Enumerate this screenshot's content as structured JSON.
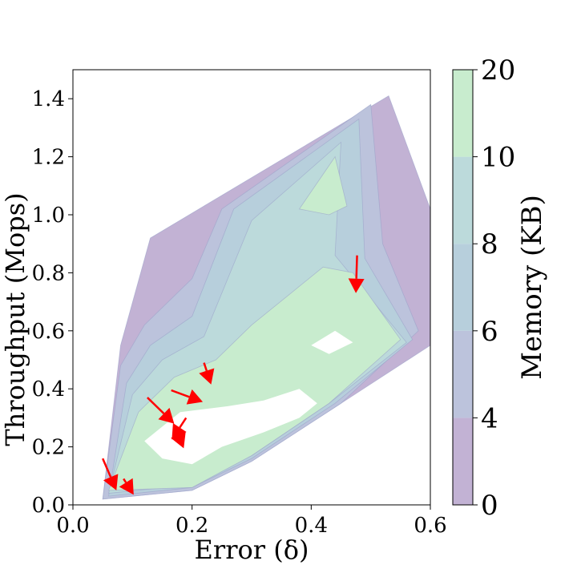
{
  "chart_data": {
    "type": "heatmap",
    "subtype": "filled-contour",
    "title": "",
    "xlabel": "Error (δ)",
    "ylabel": "Throughput (Mops)",
    "xlim": [
      0.0,
      0.6
    ],
    "ylim": [
      0.0,
      1.5
    ],
    "x_ticks": [
      0.0,
      0.2,
      0.4,
      0.6
    ],
    "x_tick_labels": [
      "0.0",
      "0.2",
      "0.4",
      "0.6"
    ],
    "y_ticks": [
      0.0,
      0.2,
      0.4,
      0.6,
      0.8,
      1.0,
      1.2,
      1.4
    ],
    "y_tick_labels": [
      "0.0",
      "0.2",
      "0.4",
      "0.6",
      "0.8",
      "1.0",
      "1.2",
      "1.4"
    ],
    "grid": false,
    "colorbar": {
      "label": "Memory (KB)",
      "levels": [
        0,
        4,
        6,
        8,
        10,
        20
      ],
      "tick_labels": [
        "0",
        "4",
        "6",
        "8",
        "10",
        "20"
      ],
      "colors": [
        "#c2b2d4",
        "#bcc3dc",
        "#b7cfdc",
        "#bcdadb",
        "#c8ecce"
      ]
    },
    "regions": [
      {
        "name": "level-0-4",
        "level_index": 0,
        "polygon": [
          [
            0.05,
            0.02
          ],
          [
            0.08,
            0.55
          ],
          [
            0.13,
            0.92
          ],
          [
            0.53,
            1.41
          ],
          [
            0.6,
            1.02
          ],
          [
            0.6,
            0.55
          ],
          [
            0.45,
            0.35
          ],
          [
            0.3,
            0.15
          ],
          [
            0.2,
            0.05
          ]
        ]
      },
      {
        "name": "level-4-6",
        "level_index": 1,
        "polygon": [
          [
            0.05,
            0.02
          ],
          [
            0.08,
            0.48
          ],
          [
            0.12,
            0.62
          ],
          [
            0.2,
            0.78
          ],
          [
            0.25,
            1.02
          ],
          [
            0.5,
            1.38
          ],
          [
            0.52,
            0.9
          ],
          [
            0.58,
            0.6
          ],
          [
            0.45,
            0.35
          ],
          [
            0.3,
            0.15
          ],
          [
            0.2,
            0.05
          ]
        ]
      },
      {
        "name": "level-6-8",
        "level_index": 2,
        "polygon": [
          [
            0.06,
            0.03
          ],
          [
            0.09,
            0.42
          ],
          [
            0.13,
            0.55
          ],
          [
            0.2,
            0.65
          ],
          [
            0.27,
            1.02
          ],
          [
            0.48,
            1.33
          ],
          [
            0.49,
            0.85
          ],
          [
            0.57,
            0.57
          ],
          [
            0.44,
            0.35
          ],
          [
            0.3,
            0.16
          ],
          [
            0.2,
            0.06
          ]
        ]
      },
      {
        "name": "level-8-10",
        "level_index": 3,
        "polygon": [
          [
            0.06,
            0.04
          ],
          [
            0.1,
            0.38
          ],
          [
            0.15,
            0.5
          ],
          [
            0.22,
            0.58
          ],
          [
            0.3,
            0.98
          ],
          [
            0.45,
            1.25
          ],
          [
            0.44,
            0.86
          ],
          [
            0.56,
            0.56
          ],
          [
            0.43,
            0.35
          ],
          [
            0.3,
            0.17
          ],
          [
            0.2,
            0.07
          ]
        ]
      },
      {
        "name": "level-10-20-main",
        "level_index": 4,
        "polygon": [
          [
            0.06,
            0.05
          ],
          [
            0.11,
            0.32
          ],
          [
            0.17,
            0.44
          ],
          [
            0.24,
            0.5
          ],
          [
            0.3,
            0.62
          ],
          [
            0.36,
            0.72
          ],
          [
            0.42,
            0.82
          ],
          [
            0.47,
            0.8
          ],
          [
            0.55,
            0.57
          ],
          [
            0.43,
            0.35
          ],
          [
            0.3,
            0.17
          ],
          [
            0.2,
            0.06
          ]
        ]
      },
      {
        "name": "level-10-20-upper",
        "level_index": 4,
        "polygon": [
          [
            0.38,
            1.02
          ],
          [
            0.44,
            1.2
          ],
          [
            0.46,
            1.03
          ],
          [
            0.43,
            1.0
          ]
        ]
      }
    ],
    "white_areas": [
      {
        "polygon": [
          [
            0.12,
            0.22
          ],
          [
            0.18,
            0.32
          ],
          [
            0.26,
            0.34
          ],
          [
            0.32,
            0.36
          ],
          [
            0.38,
            0.4
          ],
          [
            0.41,
            0.35
          ],
          [
            0.38,
            0.3
          ],
          [
            0.32,
            0.25
          ],
          [
            0.25,
            0.2
          ],
          [
            0.2,
            0.14
          ],
          [
            0.15,
            0.16
          ]
        ]
      },
      {
        "polygon": [
          [
            0.4,
            0.55
          ],
          [
            0.44,
            0.6
          ],
          [
            0.47,
            0.56
          ],
          [
            0.43,
            0.52
          ]
        ]
      }
    ],
    "arrows": [
      {
        "x1": 0.477,
        "y1": 0.86,
        "x2": 0.475,
        "y2": 0.73
      },
      {
        "x1": 0.22,
        "y1": 0.49,
        "x2": 0.232,
        "y2": 0.415
      },
      {
        "x1": 0.165,
        "y1": 0.395,
        "x2": 0.218,
        "y2": 0.355
      },
      {
        "x1": 0.125,
        "y1": 0.37,
        "x2": 0.17,
        "y2": 0.28
      },
      {
        "x1": 0.19,
        "y1": 0.3,
        "x2": 0.166,
        "y2": 0.225
      },
      {
        "x1": 0.175,
        "y1": 0.25,
        "x2": 0.186,
        "y2": 0.195
      },
      {
        "x1": 0.05,
        "y1": 0.16,
        "x2": 0.073,
        "y2": 0.05
      },
      {
        "x1": 0.085,
        "y1": 0.09,
        "x2": 0.102,
        "y2": 0.035
      }
    ],
    "arrow_color": "#ff0000"
  }
}
